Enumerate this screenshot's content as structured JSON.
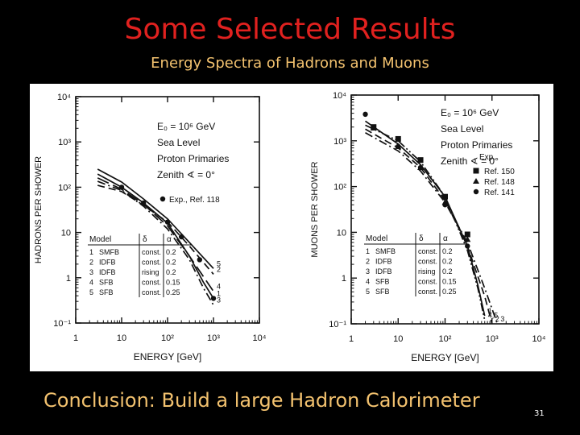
{
  "slide": {
    "title": "Some Selected Results",
    "subtitle": "Energy Spectra of  Hadrons and Muons",
    "conclusion": "Conclusion: Build a large Hadron Calorimeter",
    "page_number": "31"
  },
  "colors": {
    "background": "#000000",
    "title": "#e0211f",
    "subtitle": "#f3c26f",
    "figure_ink": "#111111"
  },
  "chart_data": [
    {
      "type": "line",
      "ylabel": "HADRONS  PER  SHOWER",
      "xlabel": "ENERGY  [GeV]",
      "x_scale": "log",
      "y_scale": "log",
      "xlim": [
        1,
        10000
      ],
      "ylim": [
        0.1,
        10000
      ],
      "x_tick_labels": [
        "1",
        "10",
        "10²",
        "10³",
        "10⁴"
      ],
      "y_tick_labels": [
        "10⁻¹",
        "1",
        "10",
        "10²",
        "10³",
        "10⁴"
      ],
      "grid": false,
      "info_text": [
        "E₀ = 10⁶ GeV",
        "Sea Level",
        "Proton Primaries",
        "Zenith ∢ = 0°"
      ],
      "legend": "Exp., Ref. 118",
      "model_table": {
        "headers": [
          "Model",
          "δ",
          "α"
        ],
        "rows": [
          [
            "1",
            "SMFB",
            "const.",
            "0.2"
          ],
          [
            "2",
            "IDFB",
            "const.",
            "0.2"
          ],
          [
            "3",
            "IDFB",
            "rising",
            "0.2"
          ],
          [
            "4",
            "SFB",
            "const.",
            "0.15"
          ],
          [
            "5",
            "SFB",
            "const.",
            "0.25"
          ]
        ]
      },
      "series": [
        {
          "label": "1",
          "style": "solid",
          "points": [
            [
              3,
              195
            ],
            [
              10,
              100
            ],
            [
              30,
              45
            ],
            [
              100,
              16
            ],
            [
              300,
              3
            ],
            [
              600,
              0.8
            ],
            [
              1000,
              0.35
            ]
          ]
        },
        {
          "label": "2",
          "style": "dashed",
          "points": [
            [
              3,
              110
            ],
            [
              10,
              80
            ],
            [
              30,
              40
            ],
            [
              100,
              17
            ],
            [
              300,
              5
            ],
            [
              1000,
              1.2
            ]
          ]
        },
        {
          "label": "3",
          "style": "dashdot",
          "points": [
            [
              3,
              135
            ],
            [
              10,
              85
            ],
            [
              30,
              38
            ],
            [
              100,
              12
            ],
            [
              300,
              2.5
            ],
            [
              600,
              0.6
            ],
            [
              1000,
              0.25
            ]
          ]
        },
        {
          "label": "4",
          "style": "longdash",
          "points": [
            [
              3,
              160
            ],
            [
              10,
              90
            ],
            [
              30,
              42
            ],
            [
              100,
              14
            ],
            [
              300,
              3
            ],
            [
              1000,
              0.5
            ]
          ]
        },
        {
          "label": "5",
          "style": "solid",
          "points": [
            [
              3,
              250
            ],
            [
              10,
              130
            ],
            [
              30,
              55
            ],
            [
              100,
              20
            ],
            [
              300,
              6
            ],
            [
              1000,
              1.6
            ]
          ]
        }
      ],
      "experimental": [
        [
          10,
          100
        ],
        [
          30,
          45
        ],
        [
          100,
          17
        ],
        [
          200,
          8
        ],
        [
          500,
          2.5
        ],
        [
          1000,
          0.35
        ]
      ]
    },
    {
      "type": "line",
      "ylabel": "MUONS  PER  SHOWER",
      "xlabel": "ENERGY  [GeV]",
      "x_scale": "log",
      "y_scale": "log",
      "xlim": [
        1,
        10000
      ],
      "ylim": [
        0.1,
        10000
      ],
      "x_tick_labels": [
        "1",
        "10",
        "10²",
        "10³",
        "10⁴"
      ],
      "y_tick_labels": [
        "10⁻¹",
        "1",
        "10",
        "10²",
        "10³",
        "10⁴"
      ],
      "grid": false,
      "info_text": [
        "E₀ = 10⁶ GeV",
        "Sea Level",
        "Proton Primaries",
        "Zenith ∢ = 0°"
      ],
      "legend_title": "Exp.",
      "legend": [
        {
          "label": "Ref. 150",
          "marker": "square"
        },
        {
          "label": "Ref. 148",
          "marker": "triangle"
        },
        {
          "label": "Ref. 141",
          "marker": "circle"
        }
      ],
      "model_table": {
        "headers": [
          "Model",
          "δ",
          "α"
        ],
        "rows": [
          [
            "1",
            "SMFB",
            "const.",
            "0.2"
          ],
          [
            "2",
            "IDFB",
            "const.",
            "0.2"
          ],
          [
            "3",
            "IDFB",
            "rising",
            "0.2"
          ],
          [
            "4",
            "SFB",
            "const.",
            "0.15"
          ],
          [
            "5",
            "SFB",
            "const.",
            "0.25"
          ]
        ]
      },
      "series": [
        {
          "label": "1",
          "style": "solid",
          "points": [
            [
              2,
              2700
            ],
            [
              10,
              850
            ],
            [
              30,
              300
            ],
            [
              100,
              60
            ],
            [
              300,
              5
            ],
            [
              500,
              0.7
            ],
            [
              700,
              0.15
            ]
          ]
        },
        {
          "label": "2",
          "style": "dashed",
          "points": [
            [
              2,
              1800
            ],
            [
              10,
              700
            ],
            [
              30,
              260
            ],
            [
              100,
              50
            ],
            [
              300,
              5
            ],
            [
              700,
              0.4
            ],
            [
              1000,
              0.1
            ]
          ]
        },
        {
          "label": "3",
          "style": "dashdot",
          "points": [
            [
              2,
              1500
            ],
            [
              10,
              600
            ],
            [
              30,
              220
            ],
            [
              100,
              45
            ],
            [
              300,
              6
            ],
            [
              700,
              0.6
            ],
            [
              1300,
              0.1
            ]
          ]
        },
        {
          "label": "4,5",
          "style": "dashdotdot",
          "points": [
            [
              2,
              2200
            ],
            [
              10,
              1000
            ],
            [
              30,
              350
            ],
            [
              100,
              60
            ],
            [
              300,
              4
            ],
            [
              500,
              0.6
            ],
            [
              700,
              0.12
            ]
          ]
        }
      ],
      "experimental": {
        "Ref. 150": [
          [
            3,
            2000
          ],
          [
            10,
            1100
          ],
          [
            30,
            380
          ],
          [
            100,
            60
          ],
          [
            300,
            9
          ]
        ],
        "Ref. 148": [
          [
            3,
            1900
          ],
          [
            10,
            750
          ],
          [
            30,
            260
          ],
          [
            100,
            45
          ],
          [
            300,
            7
          ]
        ],
        "Ref. 141": [
          [
            2,
            3800
          ],
          [
            10,
            750
          ],
          [
            30,
            260
          ],
          [
            100,
            40
          ],
          [
            300,
            5
          ]
        ]
      }
    }
  ]
}
